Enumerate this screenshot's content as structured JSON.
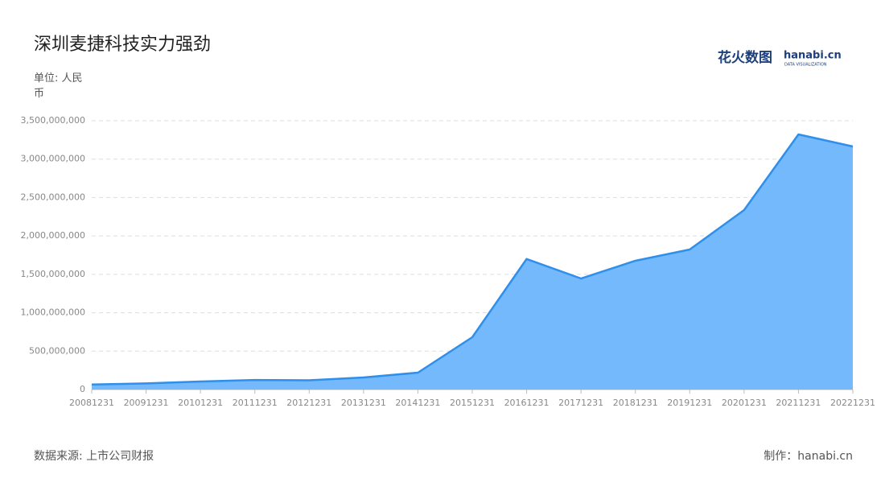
{
  "chart_data": {
    "type": "area",
    "title": "深圳麦捷科技实力强劲",
    "unit": "单位: 人民币",
    "source": "数据来源: 上市公司财报",
    "credit": "制作：hanabi.cn",
    "logo": {
      "name": "花火数图",
      "brand": "hanabi.cn",
      "tagline": "DATA VISUALIZATION"
    },
    "categories": [
      "20081231",
      "20091231",
      "20101231",
      "20111231",
      "20121231",
      "20131231",
      "20141231",
      "20151231",
      "20161231",
      "20171231",
      "20181231",
      "20191231",
      "20201231",
      "20211231",
      "20221231"
    ],
    "values": [
      65000000,
      80000000,
      105000000,
      125000000,
      120000000,
      157000000,
      220000000,
      681000000,
      1700000000,
      1446000000,
      1677000000,
      1823000000,
      2337000000,
      3322000000,
      3165000000
    ],
    "color": "#74b9fb",
    "line_color": "#2f8fea",
    "ylim": [
      0,
      3500000000
    ],
    "yticks": [
      0,
      {
        "value": 500000000,
        "label": "500,000,000"
      },
      {
        "value": 1000000000,
        "label": "1,000,000,000"
      },
      {
        "value": 1500000000,
        "label": "1,500,000,000"
      },
      {
        "value": 2000000000,
        "label": "2,000,000,000"
      },
      {
        "value": 2500000000,
        "label": "2,500,000,000"
      },
      {
        "value": 3000000000,
        "label": "3,000,000,000"
      },
      {
        "value": 3500000000,
        "label": "3,500,000,000"
      }
    ],
    "grid": true
  }
}
